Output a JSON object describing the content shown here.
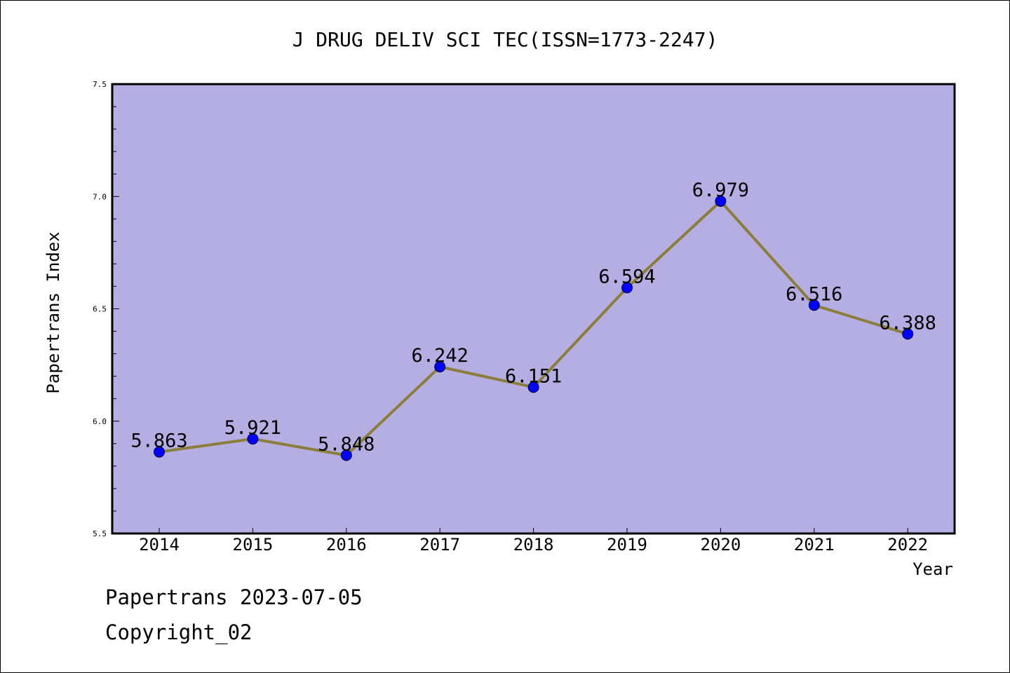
{
  "chart_data": {
    "type": "line",
    "title": "J DRUG DELIV SCI TEC(ISSN=1773-2247)",
    "xlabel": "Year",
    "ylabel": "Papertrans Index",
    "categories": [
      "2014",
      "2015",
      "2016",
      "2017",
      "2018",
      "2019",
      "2020",
      "2021",
      "2022"
    ],
    "series": [
      {
        "values": [
          5.863,
          5.921,
          5.848,
          6.242,
          6.151,
          6.594,
          6.979,
          6.516,
          6.388
        ],
        "labels": [
          "5.863",
          "5.921",
          "5.848",
          "6.242",
          "6.151",
          "6.594",
          "6.979",
          "6.516",
          "6.388"
        ]
      }
    ],
    "ylim": [
      5.5,
      7.5
    ],
    "yticks": [
      "5.5",
      "6.0",
      "6.5",
      "7.0",
      "7.5"
    ],
    "grid": false,
    "colors": {
      "plot_background": "#b5aee3",
      "line": "#8b7d3a",
      "marker": "#0000ff"
    }
  },
  "footer": {
    "line1": "Papertrans 2023-07-05",
    "line2": "Copyright_02"
  }
}
